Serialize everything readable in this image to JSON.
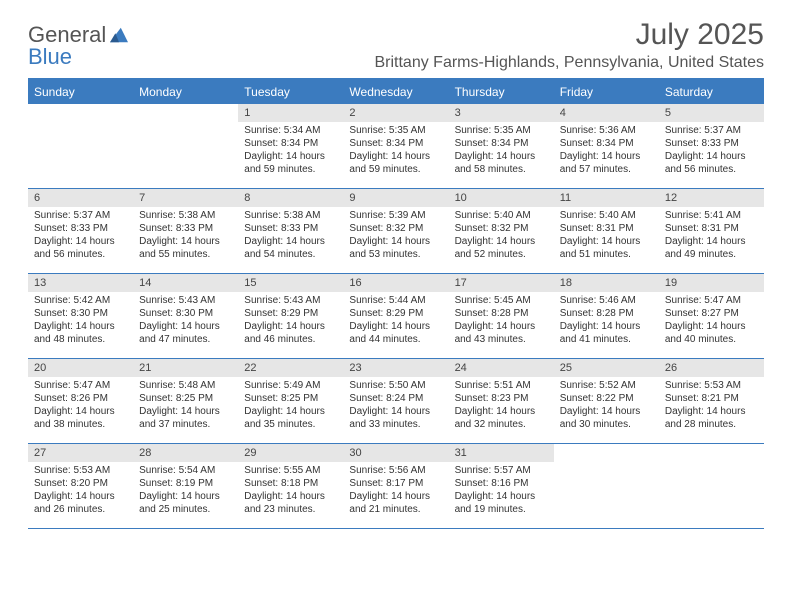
{
  "logo": {
    "text1": "General",
    "text2": "Blue"
  },
  "title": "July 2025",
  "location": "Brittany Farms-Highlands, Pennsylvania, United States",
  "colors": {
    "header_bg": "#3b7bbf",
    "daynum_bg": "#e6e6e6",
    "text": "#333333",
    "title_text": "#555555"
  },
  "daysOfWeek": [
    "Sunday",
    "Monday",
    "Tuesday",
    "Wednesday",
    "Thursday",
    "Friday",
    "Saturday"
  ],
  "weeks": [
    [
      {
        "n": "",
        "sr": "",
        "ss": "",
        "dl": ""
      },
      {
        "n": "",
        "sr": "",
        "ss": "",
        "dl": ""
      },
      {
        "n": "1",
        "sr": "5:34 AM",
        "ss": "8:34 PM",
        "dl": "14 hours and 59 minutes."
      },
      {
        "n": "2",
        "sr": "5:35 AM",
        "ss": "8:34 PM",
        "dl": "14 hours and 59 minutes."
      },
      {
        "n": "3",
        "sr": "5:35 AM",
        "ss": "8:34 PM",
        "dl": "14 hours and 58 minutes."
      },
      {
        "n": "4",
        "sr": "5:36 AM",
        "ss": "8:34 PM",
        "dl": "14 hours and 57 minutes."
      },
      {
        "n": "5",
        "sr": "5:37 AM",
        "ss": "8:33 PM",
        "dl": "14 hours and 56 minutes."
      }
    ],
    [
      {
        "n": "6",
        "sr": "5:37 AM",
        "ss": "8:33 PM",
        "dl": "14 hours and 56 minutes."
      },
      {
        "n": "7",
        "sr": "5:38 AM",
        "ss": "8:33 PM",
        "dl": "14 hours and 55 minutes."
      },
      {
        "n": "8",
        "sr": "5:38 AM",
        "ss": "8:33 PM",
        "dl": "14 hours and 54 minutes."
      },
      {
        "n": "9",
        "sr": "5:39 AM",
        "ss": "8:32 PM",
        "dl": "14 hours and 53 minutes."
      },
      {
        "n": "10",
        "sr": "5:40 AM",
        "ss": "8:32 PM",
        "dl": "14 hours and 52 minutes."
      },
      {
        "n": "11",
        "sr": "5:40 AM",
        "ss": "8:31 PM",
        "dl": "14 hours and 51 minutes."
      },
      {
        "n": "12",
        "sr": "5:41 AM",
        "ss": "8:31 PM",
        "dl": "14 hours and 49 minutes."
      }
    ],
    [
      {
        "n": "13",
        "sr": "5:42 AM",
        "ss": "8:30 PM",
        "dl": "14 hours and 48 minutes."
      },
      {
        "n": "14",
        "sr": "5:43 AM",
        "ss": "8:30 PM",
        "dl": "14 hours and 47 minutes."
      },
      {
        "n": "15",
        "sr": "5:43 AM",
        "ss": "8:29 PM",
        "dl": "14 hours and 46 minutes."
      },
      {
        "n": "16",
        "sr": "5:44 AM",
        "ss": "8:29 PM",
        "dl": "14 hours and 44 minutes."
      },
      {
        "n": "17",
        "sr": "5:45 AM",
        "ss": "8:28 PM",
        "dl": "14 hours and 43 minutes."
      },
      {
        "n": "18",
        "sr": "5:46 AM",
        "ss": "8:28 PM",
        "dl": "14 hours and 41 minutes."
      },
      {
        "n": "19",
        "sr": "5:47 AM",
        "ss": "8:27 PM",
        "dl": "14 hours and 40 minutes."
      }
    ],
    [
      {
        "n": "20",
        "sr": "5:47 AM",
        "ss": "8:26 PM",
        "dl": "14 hours and 38 minutes."
      },
      {
        "n": "21",
        "sr": "5:48 AM",
        "ss": "8:25 PM",
        "dl": "14 hours and 37 minutes."
      },
      {
        "n": "22",
        "sr": "5:49 AM",
        "ss": "8:25 PM",
        "dl": "14 hours and 35 minutes."
      },
      {
        "n": "23",
        "sr": "5:50 AM",
        "ss": "8:24 PM",
        "dl": "14 hours and 33 minutes."
      },
      {
        "n": "24",
        "sr": "5:51 AM",
        "ss": "8:23 PM",
        "dl": "14 hours and 32 minutes."
      },
      {
        "n": "25",
        "sr": "5:52 AM",
        "ss": "8:22 PM",
        "dl": "14 hours and 30 minutes."
      },
      {
        "n": "26",
        "sr": "5:53 AM",
        "ss": "8:21 PM",
        "dl": "14 hours and 28 minutes."
      }
    ],
    [
      {
        "n": "27",
        "sr": "5:53 AM",
        "ss": "8:20 PM",
        "dl": "14 hours and 26 minutes."
      },
      {
        "n": "28",
        "sr": "5:54 AM",
        "ss": "8:19 PM",
        "dl": "14 hours and 25 minutes."
      },
      {
        "n": "29",
        "sr": "5:55 AM",
        "ss": "8:18 PM",
        "dl": "14 hours and 23 minutes."
      },
      {
        "n": "30",
        "sr": "5:56 AM",
        "ss": "8:17 PM",
        "dl": "14 hours and 21 minutes."
      },
      {
        "n": "31",
        "sr": "5:57 AM",
        "ss": "8:16 PM",
        "dl": "14 hours and 19 minutes."
      },
      {
        "n": "",
        "sr": "",
        "ss": "",
        "dl": ""
      },
      {
        "n": "",
        "sr": "",
        "ss": "",
        "dl": ""
      }
    ]
  ],
  "labels": {
    "sunrise": "Sunrise:",
    "sunset": "Sunset:",
    "daylight": "Daylight:"
  }
}
